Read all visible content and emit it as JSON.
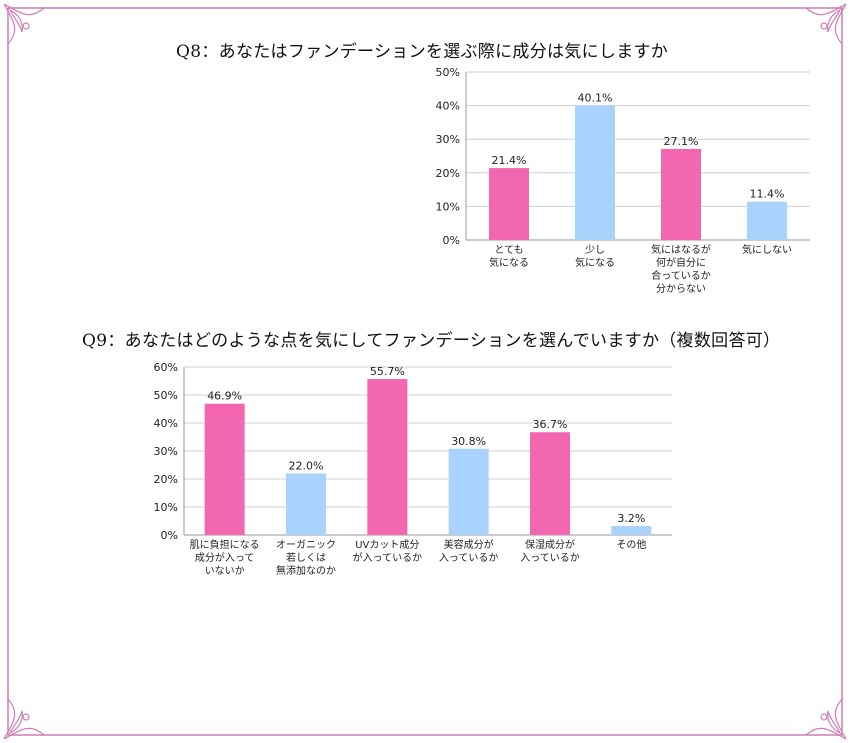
{
  "colors": {
    "pink": "#F267AF",
    "blue": "#A9D2FC",
    "frame": "#D07CB8",
    "grid": "#CFCFCF"
  },
  "q8": {
    "title": "Q8：あなたはファンデーションを選ぶ際に成分は気にしますか"
  },
  "q9": {
    "title": "Q9：あなたはどのような点を気にしてファンデーションを選んでいますか（複数回答可）"
  },
  "chart_data": [
    {
      "type": "bar",
      "title": "Q8：あなたはファンデーションを選ぶ際に成分は気にしますか",
      "categories": [
        [
          "とても",
          "気になる"
        ],
        [
          "少し",
          "気になる"
        ],
        [
          "気にはなるが",
          "何が自分に",
          "合っているか",
          "分からない"
        ],
        [
          "気にしない"
        ]
      ],
      "values": [
        21.4,
        40.1,
        27.1,
        11.4
      ],
      "value_labels": [
        "21.4%",
        "40.1%",
        "27.1%",
        "11.4%"
      ],
      "bar_colors": [
        "#F267AF",
        "#A9D2FC",
        "#F267AF",
        "#A9D2FC"
      ],
      "ylim": [
        0,
        50
      ],
      "yticks": [
        "0%",
        "10%",
        "20%",
        "30%",
        "40%",
        "50%"
      ],
      "grid": true,
      "xlabel": "",
      "ylabel": ""
    },
    {
      "type": "bar",
      "title": "Q9：あなたはどのような点を気にしてファンデーションを選んでいますか（複数回答可）",
      "categories": [
        [
          "肌に負担になる",
          "成分が入って",
          "いないか"
        ],
        [
          "オーガニック",
          "若しくは",
          "無添加なのか"
        ],
        [
          "UVカット成分",
          "が入っているか"
        ],
        [
          "美容成分が",
          "入っているか"
        ],
        [
          "保湿成分が",
          "入っているか"
        ],
        [
          "その他"
        ]
      ],
      "values": [
        46.9,
        22.0,
        55.7,
        30.8,
        36.7,
        3.2
      ],
      "value_labels": [
        "46.9%",
        "22.0%",
        "55.7%",
        "30.8%",
        "36.7%",
        "3.2%"
      ],
      "bar_colors": [
        "#F267AF",
        "#A9D2FC",
        "#F267AF",
        "#A9D2FC",
        "#F267AF",
        "#A9D2FC"
      ],
      "ylim": [
        0,
        60
      ],
      "yticks": [
        "0%",
        "10%",
        "20%",
        "30%",
        "40%",
        "50%",
        "60%"
      ],
      "grid": true,
      "xlabel": "",
      "ylabel": ""
    }
  ]
}
